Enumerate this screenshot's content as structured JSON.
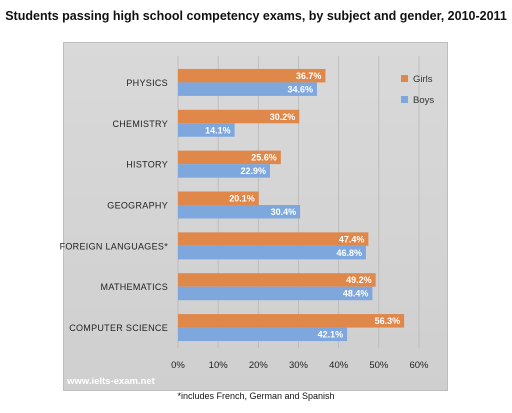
{
  "title": "Students passing high school competency exams, by subject and gender, 2010-2011",
  "footnote": "*includes French, German and Spanish",
  "watermark": "www.ielts-exam.net",
  "chart_data": {
    "type": "bar",
    "orientation": "horizontal",
    "title": "Students passing high school competency exams, by subject and gender, 2010-2011",
    "categories": [
      "PHYSICS",
      "CHEMISTRY",
      "HISTORY",
      "GEOGRAPHY",
      "FOREIGN LANGUAGES*",
      "MATHEMATICS",
      "COMPUTER SCIENCE"
    ],
    "series": [
      {
        "name": "Girls",
        "color": "#e0874a",
        "values": [
          36.7,
          30.2,
          25.6,
          20.1,
          47.4,
          49.2,
          56.3
        ],
        "labels": [
          "36.7%",
          "30.2%",
          "25.6%",
          "20.1%",
          "47.4%",
          "49.2%",
          "56.3%"
        ]
      },
      {
        "name": "Boys",
        "color": "#7ea8dd",
        "values": [
          34.6,
          14.1,
          22.9,
          30.4,
          46.8,
          48.4,
          42.1
        ],
        "labels": [
          "34.6%",
          "14.1%",
          "22.9%",
          "30.4%",
          "46.8%",
          "48.4%",
          "42.1%"
        ]
      }
    ],
    "xlim": [
      0,
      60
    ],
    "xticks": [
      0,
      10,
      20,
      30,
      40,
      50,
      60
    ],
    "xtick_labels": [
      "0%",
      "10%",
      "20%",
      "30%",
      "40%",
      "50%",
      "60%"
    ],
    "grid": true,
    "legend": "top-right"
  }
}
